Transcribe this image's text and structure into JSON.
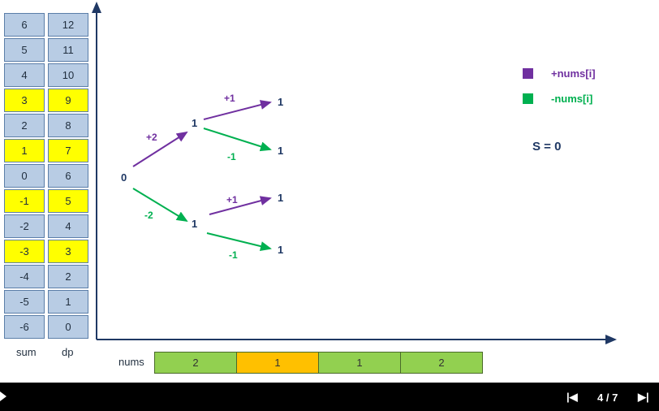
{
  "table": {
    "sum_label": "sum",
    "dp_label": "dp",
    "rows": [
      {
        "sum": "6",
        "dp": "12",
        "highlight": false
      },
      {
        "sum": "5",
        "dp": "11",
        "highlight": false
      },
      {
        "sum": "4",
        "dp": "10",
        "highlight": false
      },
      {
        "sum": "3",
        "dp": "9",
        "highlight": true
      },
      {
        "sum": "2",
        "dp": "8",
        "highlight": false
      },
      {
        "sum": "1",
        "dp": "7",
        "highlight": true
      },
      {
        "sum": "0",
        "dp": "6",
        "highlight": false
      },
      {
        "sum": "-1",
        "dp": "5",
        "highlight": true
      },
      {
        "sum": "-2",
        "dp": "4",
        "highlight": false
      },
      {
        "sum": "-3",
        "dp": "3",
        "highlight": true
      },
      {
        "sum": "-4",
        "dp": "2",
        "highlight": false
      },
      {
        "sum": "-5",
        "dp": "1",
        "highlight": false
      },
      {
        "sum": "-6",
        "dp": "0",
        "highlight": false
      }
    ]
  },
  "nums": {
    "label": "nums",
    "values": [
      "2",
      "1",
      "1",
      "2"
    ],
    "highlight_index": 1
  },
  "tree": {
    "root": "0",
    "level1": [
      "1",
      "1"
    ],
    "level2": [
      "1",
      "1",
      "1",
      "1"
    ],
    "edges": [
      "+2",
      "-2",
      "+1",
      "-1",
      "+1",
      "-1"
    ]
  },
  "legend": {
    "plus_label": "+nums[i]",
    "minus_label": "-nums[i]",
    "plus_color": "#7030a0",
    "minus_color": "#00b050"
  },
  "s_label": "S = 0",
  "colors": {
    "node": "#1f3864",
    "axis": "#1f3864",
    "cell": "#b8cce4",
    "highlight": "#ffff00",
    "nums_cell": "#92d050",
    "nums_highlight": "#ffc000"
  },
  "player": {
    "slide_counter": "4 / 7",
    "play_icon": "play-icon",
    "prev_icon": "skip-previous-icon",
    "next_icon": "skip-next-icon"
  }
}
